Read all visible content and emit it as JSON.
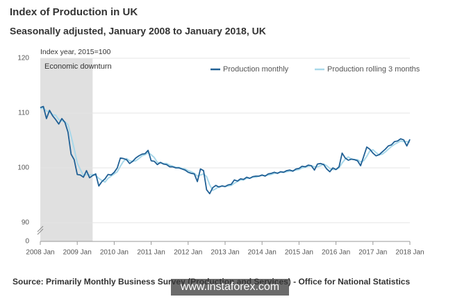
{
  "chart_data": {
    "type": "line",
    "title": "Index of Production in UK",
    "subtitle": "Seasonally adjusted, January 2008 to January 2018, UK",
    "y_label": "Index year, 2015=100",
    "categories": [
      "2008 Jan",
      null,
      null,
      null,
      null,
      null,
      null,
      null,
      null,
      null,
      null,
      null,
      "2009 Jan",
      null,
      null,
      null,
      null,
      null,
      null,
      null,
      null,
      null,
      null,
      null,
      "2010 Jan",
      null,
      null,
      null,
      null,
      null,
      null,
      null,
      null,
      null,
      null,
      null,
      "2011 Jan",
      null,
      null,
      null,
      null,
      null,
      null,
      null,
      null,
      null,
      null,
      null,
      "2012 Jan",
      null,
      null,
      null,
      null,
      null,
      null,
      null,
      null,
      null,
      null,
      null,
      "2013 Jan",
      null,
      null,
      null,
      null,
      null,
      null,
      null,
      null,
      null,
      null,
      null,
      "2014 Jan",
      null,
      null,
      null,
      null,
      null,
      null,
      null,
      null,
      null,
      null,
      null,
      "2015 Jan",
      null,
      null,
      null,
      null,
      null,
      null,
      null,
      null,
      null,
      null,
      null,
      "2016 Jan",
      null,
      null,
      null,
      null,
      null,
      null,
      null,
      null,
      null,
      null,
      null,
      "2017 Jan",
      null,
      null,
      null,
      null,
      null,
      null,
      null,
      null,
      null,
      null,
      null,
      "2018 Jan"
    ],
    "series": [
      {
        "name": "Production monthly",
        "color": "#206095",
        "values": [
          111.0,
          111.2,
          109.0,
          110.5,
          109.5,
          108.8,
          108.0,
          109.0,
          108.3,
          106.5,
          102.5,
          101.5,
          98.8,
          98.7,
          98.3,
          99.5,
          98.2,
          98.6,
          98.9,
          96.7,
          97.5,
          98.0,
          98.8,
          98.7,
          99.2,
          100.0,
          101.8,
          101.7,
          101.5,
          100.8,
          101.2,
          101.8,
          102.2,
          102.5,
          102.6,
          103.2,
          101.3,
          101.2,
          100.6,
          101.0,
          100.7,
          100.6,
          100.2,
          100.2,
          100.0,
          100.0,
          99.8,
          99.6,
          99.2,
          99.0,
          98.9,
          97.5,
          99.8,
          99.5,
          96.0,
          95.3,
          96.4,
          96.8,
          96.5,
          96.7,
          96.6,
          96.9,
          97.0,
          97.8,
          97.6,
          98.0,
          97.9,
          98.3,
          98.1,
          98.4,
          98.5,
          98.5,
          98.7,
          98.5,
          98.9,
          99.0,
          99.2,
          99.0,
          99.3,
          99.2,
          99.5,
          99.6,
          99.4,
          99.8,
          99.9,
          100.3,
          100.2,
          100.5,
          100.4,
          99.6,
          100.7,
          100.8,
          100.6,
          99.8,
          99.3,
          100.0,
          99.7,
          100.2,
          102.7,
          101.8,
          101.4,
          101.6,
          101.5,
          101.3,
          100.4,
          102.1,
          103.8,
          103.4,
          102.7,
          102.2,
          102.4,
          102.9,
          103.4,
          104.0,
          104.2,
          104.8,
          104.9,
          105.3,
          105.1,
          104.0,
          105.2
        ]
      },
      {
        "name": "Production rolling 3 months",
        "color": "#a8d8ea",
        "values": [
          110.8,
          110.9,
          110.4,
          110.2,
          109.7,
          109.6,
          108.8,
          108.6,
          108.4,
          107.9,
          105.8,
          103.5,
          100.9,
          99.7,
          98.6,
          98.8,
          98.7,
          98.8,
          98.6,
          98.1,
          97.7,
          97.4,
          98.1,
          98.5,
          98.9,
          99.3,
          100.3,
          101.2,
          101.7,
          101.3,
          101.2,
          101.3,
          101.7,
          102.2,
          102.4,
          102.8,
          102.4,
          101.9,
          101.0,
          100.9,
          100.8,
          100.8,
          100.5,
          100.3,
          100.1,
          100.1,
          99.9,
          99.8,
          99.5,
          99.3,
          99.0,
          98.5,
          98.7,
          98.9,
          98.4,
          96.9,
          95.9,
          96.2,
          96.6,
          96.7,
          96.6,
          96.7,
          96.8,
          97.2,
          97.5,
          97.8,
          97.8,
          98.1,
          98.1,
          98.3,
          98.3,
          98.5,
          98.6,
          98.6,
          98.7,
          98.8,
          99.0,
          99.1,
          99.2,
          99.2,
          99.3,
          99.4,
          99.5,
          99.6,
          99.7,
          100.0,
          100.1,
          100.3,
          100.4,
          100.2,
          100.2,
          100.4,
          100.7,
          100.4,
          99.9,
          99.7,
          99.7,
          100.0,
          100.9,
          101.6,
          102.0,
          101.6,
          101.5,
          101.5,
          101.1,
          101.3,
          102.1,
          103.1,
          103.3,
          102.8,
          102.4,
          102.5,
          102.9,
          103.4,
          103.9,
          104.3,
          104.6,
          104.9,
          104.8,
          104.8,
          104.7
        ]
      }
    ],
    "ylim": [
      90,
      120
    ],
    "yticks": [
      0,
      90,
      100,
      110,
      120
    ],
    "axis_break": true,
    "grid": true,
    "shaded_region": {
      "label": "Economic downturn",
      "from": 0,
      "to": 17,
      "color": "#e0e0e0"
    },
    "legend": "top-right",
    "source": "Source: Primarily Monthly Business Survey (Production and Services) -  Office for National Statistics",
    "watermark": "www.instaforex.com"
  }
}
